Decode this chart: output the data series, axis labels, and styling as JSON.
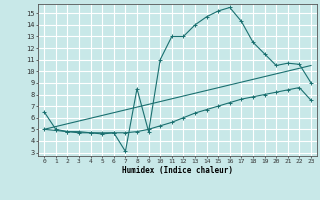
{
  "title": "",
  "xlabel": "Humidex (Indice chaleur)",
  "bg_color": "#c8e8e8",
  "grid_color": "#ffffff",
  "line_color": "#1a7070",
  "xlim": [
    -0.5,
    23.5
  ],
  "ylim": [
    2.7,
    15.8
  ],
  "yticks": [
    3,
    4,
    5,
    6,
    7,
    8,
    9,
    10,
    11,
    12,
    13,
    14,
    15
  ],
  "xticks": [
    0,
    1,
    2,
    3,
    4,
    5,
    6,
    7,
    8,
    9,
    10,
    11,
    12,
    13,
    14,
    15,
    16,
    17,
    18,
    19,
    20,
    21,
    22,
    23
  ],
  "curve1_x": [
    0,
    1,
    2,
    3,
    4,
    5,
    6,
    7,
    8,
    9,
    10,
    11,
    12,
    13,
    14,
    15,
    16,
    17,
    18,
    19,
    20,
    21,
    22,
    23
  ],
  "curve1_y": [
    6.5,
    5.0,
    4.8,
    4.7,
    4.7,
    4.6,
    4.7,
    3.1,
    8.5,
    4.8,
    11.0,
    13.0,
    13.0,
    14.0,
    14.7,
    15.2,
    15.5,
    14.3,
    12.5,
    11.5,
    10.5,
    10.7,
    10.6,
    9.0
  ],
  "curve2_x": [
    0,
    1,
    2,
    3,
    4,
    5,
    6,
    7,
    8,
    9,
    10,
    11,
    12,
    13,
    14,
    15,
    16,
    17,
    18,
    19,
    20,
    21,
    22,
    23
  ],
  "curve2_y": [
    5.0,
    4.9,
    4.8,
    4.8,
    4.7,
    4.7,
    4.7,
    4.7,
    4.8,
    5.0,
    5.3,
    5.6,
    6.0,
    6.4,
    6.7,
    7.0,
    7.3,
    7.6,
    7.8,
    8.0,
    8.2,
    8.4,
    8.6,
    7.5
  ],
  "curve3_x": [
    0,
    23
  ],
  "curve3_y": [
    5.0,
    10.5
  ]
}
